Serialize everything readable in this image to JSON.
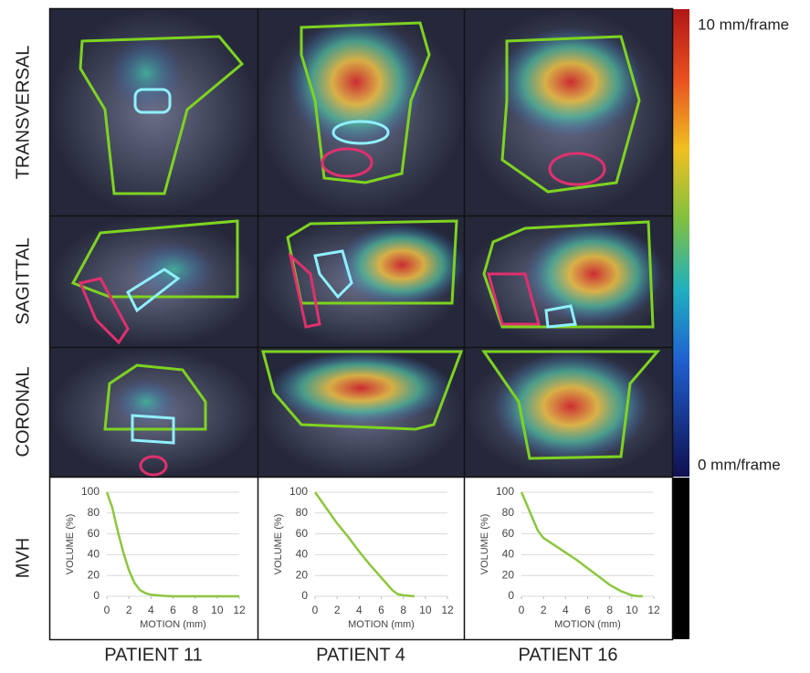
{
  "row_labels": [
    "TRANSVERSAL",
    "SAGITTAL",
    "CORONAL",
    "MVH"
  ],
  "column_labels": [
    "PATIENT 11",
    "PATIENT 4",
    "PATIENT 16"
  ],
  "colorbar": {
    "max_label": "10 mm/frame",
    "min_label": "0 mm/frame"
  },
  "chart_data": [
    {
      "type": "line",
      "x_label": "MOTION (mm)",
      "y_label": "VOLUME (%)",
      "color": "#8cc63f",
      "x": [
        0,
        0.5,
        1,
        1.5,
        2,
        2.5,
        3,
        3.5,
        4,
        5,
        6,
        8,
        10,
        12
      ],
      "values": [
        100,
        85,
        62,
        42,
        25,
        13,
        6,
        3,
        1.5,
        0.5,
        0,
        0,
        0,
        0
      ],
      "xlim": [
        0,
        12
      ],
      "xticks": [
        0,
        2,
        4,
        6,
        8,
        10,
        12
      ],
      "ylim": [
        0,
        100
      ],
      "yticks": [
        0,
        20,
        40,
        60,
        80,
        100
      ],
      "grid": true
    },
    {
      "type": "line",
      "x_label": "MOTION (mm)",
      "y_label": "VOLUME (%)",
      "color": "#8cc63f",
      "x": [
        0,
        1,
        2,
        3,
        4,
        5,
        6,
        7,
        7.5,
        8,
        9
      ],
      "values": [
        100,
        85,
        70,
        57,
        43,
        30,
        18,
        6,
        2,
        1,
        0
      ],
      "xlim": [
        0,
        12
      ],
      "xticks": [
        0,
        2,
        4,
        6,
        8,
        10,
        12
      ],
      "ylim": [
        0,
        100
      ],
      "yticks": [
        0,
        20,
        40,
        60,
        80,
        100
      ],
      "grid": true
    },
    {
      "type": "line",
      "x_label": "MOTION (mm)",
      "y_label": "VOLUME (%)",
      "color": "#8cc63f",
      "x": [
        0,
        0.5,
        1,
        1.5,
        2,
        3,
        4,
        5,
        6,
        7,
        8,
        9,
        10,
        10.5,
        11
      ],
      "values": [
        100,
        88,
        75,
        63,
        56,
        49,
        42,
        35,
        27,
        19,
        11,
        5,
        1,
        0.3,
        0
      ],
      "xlim": [
        0,
        12
      ],
      "xticks": [
        0,
        2,
        4,
        6,
        8,
        10,
        12
      ],
      "ylim": [
        0,
        100
      ],
      "yticks": [
        0,
        20,
        40,
        60,
        80,
        100
      ],
      "grid": true
    }
  ]
}
